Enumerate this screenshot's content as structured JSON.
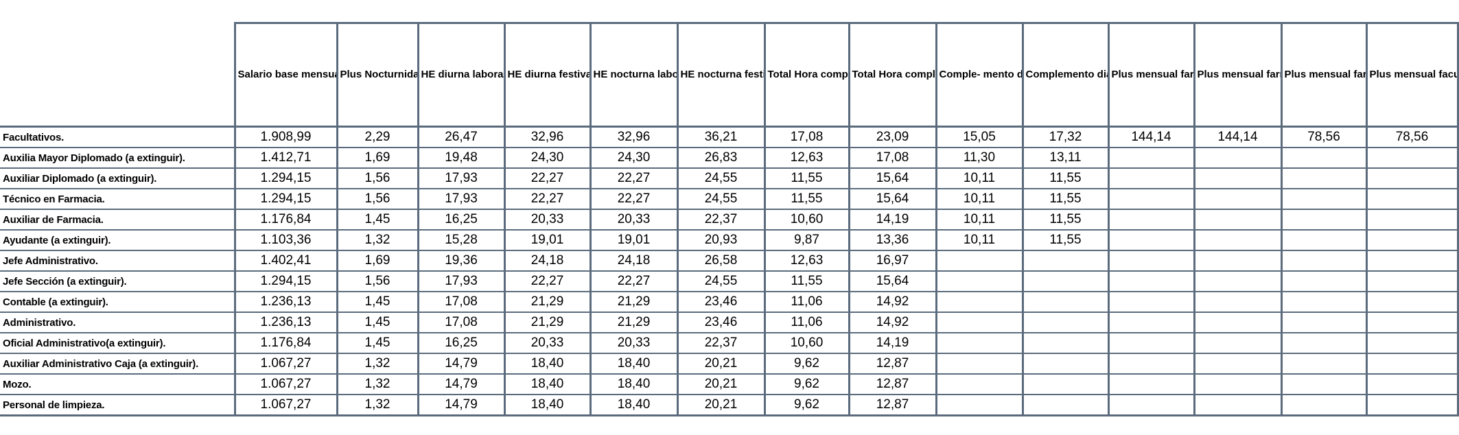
{
  "headers": [
    "",
    "Salario base mensual (catorce pagas por año)",
    "Plus Nocturnidad por hora",
    "HE diurna laborable",
    "HE diurna festiva",
    "HE nocturna laborable",
    "HE nocturna festiva",
    "Total Hora complementaria laborable",
    "Total Hora complementaria festiva",
    "Comple- mento diario guardia rural laborable",
    "Complemento diario guardia rural festivo",
    "Plus mensual farmacéutico regente",
    "Plus mensual farmacéutico sustituto",
    "Plus mensual farmacéutico adjunto",
    "Plus mensual facultativo"
  ],
  "rows": [
    [
      "Facultativos.",
      "1.908,99",
      "2,29",
      "26,47",
      "32,96",
      "32,96",
      "36,21",
      "17,08",
      "23,09",
      "15,05",
      "17,32",
      "144,14",
      "144,14",
      "78,56",
      "78,56"
    ],
    [
      "Auxilia Mayor Diplomado (a extinguir).",
      "1.412,71",
      "1,69",
      "19,48",
      "24,30",
      "24,30",
      "26,83",
      "12,63",
      "17,08",
      "11,30",
      "13,11",
      "",
      "",
      "",
      ""
    ],
    [
      "Auxiliar Diplomado (a extinguir).",
      "1.294,15",
      "1,56",
      "17,93",
      "22,27",
      "22,27",
      "24,55",
      "11,55",
      "15,64",
      "10,11",
      "11,55",
      "",
      "",
      "",
      ""
    ],
    [
      "Técnico en Farmacia.",
      "1.294,15",
      "1,56",
      "17,93",
      "22,27",
      "22,27",
      "24,55",
      "11,55",
      "15,64",
      "10,11",
      "11,55",
      "",
      "",
      "",
      ""
    ],
    [
      "Auxiliar de Farmacia.",
      "1.176,84",
      "1,45",
      "16,25",
      "20,33",
      "20,33",
      "22,37",
      "10,60",
      "14,19",
      "10,11",
      "11,55",
      "",
      "",
      "",
      ""
    ],
    [
      "Ayudante (a extinguir).",
      "1.103,36",
      "1,32",
      "15,28",
      "19,01",
      "19,01",
      "20,93",
      "9,87",
      "13,36",
      "10,11",
      "11,55",
      "",
      "",
      "",
      ""
    ],
    [
      "Jefe Administrativo.",
      "1.402,41",
      "1,69",
      "19,36",
      "24,18",
      "24,18",
      "26,58",
      "12,63",
      "16,97",
      "",
      "",
      "",
      "",
      "",
      ""
    ],
    [
      "Jefe Sección (a extinguir).",
      "1.294,15",
      "1,56",
      "17,93",
      "22,27",
      "22,27",
      "24,55",
      "11,55",
      "15,64",
      "",
      "",
      "",
      "",
      "",
      ""
    ],
    [
      "Contable (a extinguir).",
      "1.236,13",
      "1,45",
      "17,08",
      "21,29",
      "21,29",
      "23,46",
      "11,06",
      "14,92",
      "",
      "",
      "",
      "",
      "",
      ""
    ],
    [
      "Administrativo.",
      "1.236,13",
      "1,45",
      "17,08",
      "21,29",
      "21,29",
      "23,46",
      "11,06",
      "14,92",
      "",
      "",
      "",
      "",
      "",
      ""
    ],
    [
      "Oficial Administrativo(a extinguir).",
      "1.176,84",
      "1,45",
      "16,25",
      "20,33",
      "20,33",
      "22,37",
      "10,60",
      "14,19",
      "",
      "",
      "",
      "",
      "",
      ""
    ],
    [
      "Auxiliar Administrativo Caja (a extinguir).",
      "1.067,27",
      "1,32",
      "14,79",
      "18,40",
      "18,40",
      "20,21",
      "9,62",
      "12,87",
      "",
      "",
      "",
      "",
      "",
      ""
    ],
    [
      "Mozo.",
      "1.067,27",
      "1,32",
      "14,79",
      "18,40",
      "18,40",
      "20,21",
      "9,62",
      "12,87",
      "",
      "",
      "",
      "",
      "",
      ""
    ],
    [
      "Personal de limpieza.",
      "1.067,27",
      "1,32",
      "14,79",
      "18,40",
      "18,40",
      "20,21",
      "9,62",
      "12,87",
      "",
      "",
      "",
      "",
      "",
      ""
    ]
  ]
}
